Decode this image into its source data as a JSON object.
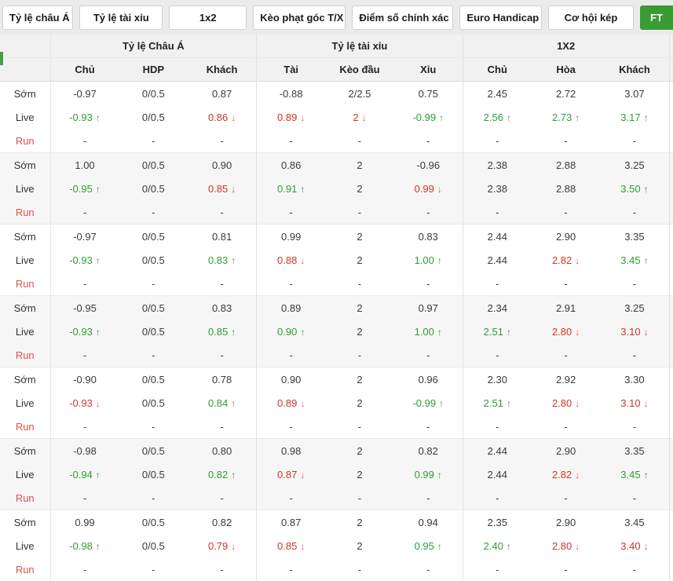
{
  "tab_bar": {
    "tabs": [
      {
        "label": "Tỷ lệ châu Á"
      },
      {
        "label": "Tỷ lệ tài xỉu"
      },
      {
        "label": "1x2"
      },
      {
        "label": "Kèo phạt góc T/X"
      },
      {
        "label": "Điểm số chính xác"
      },
      {
        "label": "Euro Handicap"
      },
      {
        "label": "Cơ hội kép"
      }
    ],
    "ft_label": "FT"
  },
  "colors": {
    "green": "#2f9d36",
    "red": "#d0342c",
    "arrow_down": "#e0602f",
    "ft_button_green": "#3a9b35",
    "run_label_red": "#d9534f"
  },
  "table": {
    "groups": [
      "Tỷ lệ Châu Á",
      "Tỷ lệ tài xỉu",
      "1X2"
    ],
    "columns": [
      "Chủ",
      "HDP",
      "Khách",
      "Tài",
      "Kèo đầu",
      "Xỉu",
      "Chủ",
      "Hòa",
      "Khách"
    ],
    "rows": [
      {
        "label": "Sớm",
        "type": "early",
        "cells": [
          {
            "v": "-0.97",
            "c": "k"
          },
          {
            "v": "0/0.5",
            "c": "k"
          },
          {
            "v": "0.87",
            "c": "k"
          },
          {
            "v": "-0.88",
            "c": "k"
          },
          {
            "v": "2/2.5",
            "c": "k"
          },
          {
            "v": "0.75",
            "c": "k"
          },
          {
            "v": "2.45",
            "c": "k"
          },
          {
            "v": "2.72",
            "c": "k"
          },
          {
            "v": "3.07",
            "c": "k"
          }
        ]
      },
      {
        "label": "Live",
        "type": "live",
        "cells": [
          {
            "v": "-0.93",
            "c": "g",
            "a": "u"
          },
          {
            "v": "0/0.5",
            "c": "k"
          },
          {
            "v": "0.86",
            "c": "r",
            "a": "d"
          },
          {
            "v": "0.89",
            "c": "r",
            "a": "d"
          },
          {
            "v": "2",
            "c": "r",
            "a": "d"
          },
          {
            "v": "-0.99",
            "c": "g",
            "a": "u"
          },
          {
            "v": "2.56",
            "c": "g",
            "a": "u"
          },
          {
            "v": "2.73",
            "c": "g",
            "a": "u"
          },
          {
            "v": "3.17",
            "c": "g",
            "a": "u"
          }
        ]
      },
      {
        "label": "Run",
        "type": "run",
        "cells": [
          {
            "v": "-",
            "c": "k"
          },
          {
            "v": "-",
            "c": "k"
          },
          {
            "v": "-",
            "c": "k"
          },
          {
            "v": "-",
            "c": "k"
          },
          {
            "v": "-",
            "c": "k"
          },
          {
            "v": "-",
            "c": "k"
          },
          {
            "v": "-",
            "c": "k"
          },
          {
            "v": "-",
            "c": "k"
          },
          {
            "v": "-",
            "c": "k"
          }
        ]
      },
      {
        "label": "Sớm",
        "type": "early",
        "cells": [
          {
            "v": "1.00",
            "c": "k"
          },
          {
            "v": "0/0.5",
            "c": "k"
          },
          {
            "v": "0.90",
            "c": "k"
          },
          {
            "v": "0.86",
            "c": "k"
          },
          {
            "v": "2",
            "c": "k"
          },
          {
            "v": "-0.96",
            "c": "k"
          },
          {
            "v": "2.38",
            "c": "k"
          },
          {
            "v": "2.88",
            "c": "k"
          },
          {
            "v": "3.25",
            "c": "k"
          }
        ]
      },
      {
        "label": "Live",
        "type": "live",
        "cells": [
          {
            "v": "-0.95",
            "c": "g",
            "a": "u"
          },
          {
            "v": "0/0.5",
            "c": "k"
          },
          {
            "v": "0.85",
            "c": "r",
            "a": "d"
          },
          {
            "v": "0.91",
            "c": "g",
            "a": "u"
          },
          {
            "v": "2",
            "c": "k"
          },
          {
            "v": "0.99",
            "c": "r",
            "a": "d"
          },
          {
            "v": "2.38",
            "c": "k"
          },
          {
            "v": "2.88",
            "c": "k"
          },
          {
            "v": "3.50",
            "c": "g",
            "a": "u"
          }
        ]
      },
      {
        "label": "Run",
        "type": "run",
        "cells": [
          {
            "v": "-",
            "c": "k"
          },
          {
            "v": "-",
            "c": "k"
          },
          {
            "v": "-",
            "c": "k"
          },
          {
            "v": "-",
            "c": "k"
          },
          {
            "v": "-",
            "c": "k"
          },
          {
            "v": "-",
            "c": "k"
          },
          {
            "v": "-",
            "c": "k"
          },
          {
            "v": "-",
            "c": "k"
          },
          {
            "v": "-",
            "c": "k"
          }
        ]
      },
      {
        "label": "Sớm",
        "type": "early",
        "cells": [
          {
            "v": "-0.97",
            "c": "k"
          },
          {
            "v": "0/0.5",
            "c": "k"
          },
          {
            "v": "0.81",
            "c": "k"
          },
          {
            "v": "0.99",
            "c": "k"
          },
          {
            "v": "2",
            "c": "k"
          },
          {
            "v": "0.83",
            "c": "k"
          },
          {
            "v": "2.44",
            "c": "k"
          },
          {
            "v": "2.90",
            "c": "k"
          },
          {
            "v": "3.35",
            "c": "k"
          }
        ]
      },
      {
        "label": "Live",
        "type": "live",
        "cells": [
          {
            "v": "-0.93",
            "c": "g",
            "a": "u"
          },
          {
            "v": "0/0.5",
            "c": "k"
          },
          {
            "v": "0.83",
            "c": "g",
            "a": "u"
          },
          {
            "v": "0.88",
            "c": "r",
            "a": "d"
          },
          {
            "v": "2",
            "c": "k"
          },
          {
            "v": "1.00",
            "c": "g",
            "a": "u"
          },
          {
            "v": "2.44",
            "c": "k"
          },
          {
            "v": "2.82",
            "c": "r",
            "a": "d"
          },
          {
            "v": "3.45",
            "c": "g",
            "a": "u"
          }
        ]
      },
      {
        "label": "Run",
        "type": "run",
        "cells": [
          {
            "v": "-",
            "c": "k"
          },
          {
            "v": "-",
            "c": "k"
          },
          {
            "v": "-",
            "c": "k"
          },
          {
            "v": "-",
            "c": "k"
          },
          {
            "v": "-",
            "c": "k"
          },
          {
            "v": "-",
            "c": "k"
          },
          {
            "v": "-",
            "c": "k"
          },
          {
            "v": "-",
            "c": "k"
          },
          {
            "v": "-",
            "c": "k"
          }
        ]
      },
      {
        "label": "Sớm",
        "type": "early",
        "cells": [
          {
            "v": "-0.95",
            "c": "k"
          },
          {
            "v": "0/0.5",
            "c": "k"
          },
          {
            "v": "0.83",
            "c": "k"
          },
          {
            "v": "0.89",
            "c": "k"
          },
          {
            "v": "2",
            "c": "k"
          },
          {
            "v": "0.97",
            "c": "k"
          },
          {
            "v": "2.34",
            "c": "k"
          },
          {
            "v": "2.91",
            "c": "k"
          },
          {
            "v": "3.25",
            "c": "k"
          }
        ]
      },
      {
        "label": "Live",
        "type": "live",
        "cells": [
          {
            "v": "-0.93",
            "c": "g",
            "a": "u"
          },
          {
            "v": "0/0.5",
            "c": "k"
          },
          {
            "v": "0.85",
            "c": "g",
            "a": "u"
          },
          {
            "v": "0.90",
            "c": "g",
            "a": "u"
          },
          {
            "v": "2",
            "c": "k"
          },
          {
            "v": "1.00",
            "c": "g",
            "a": "u"
          },
          {
            "v": "2.51",
            "c": "g",
            "a": "u"
          },
          {
            "v": "2.80",
            "c": "r",
            "a": "d"
          },
          {
            "v": "3.10",
            "c": "r",
            "a": "d"
          }
        ]
      },
      {
        "label": "Run",
        "type": "run",
        "cells": [
          {
            "v": "-",
            "c": "k"
          },
          {
            "v": "-",
            "c": "k"
          },
          {
            "v": "-",
            "c": "k"
          },
          {
            "v": "-",
            "c": "k"
          },
          {
            "v": "-",
            "c": "k"
          },
          {
            "v": "-",
            "c": "k"
          },
          {
            "v": "-",
            "c": "k"
          },
          {
            "v": "-",
            "c": "k"
          },
          {
            "v": "-",
            "c": "k"
          }
        ]
      },
      {
        "label": "Sớm",
        "type": "early",
        "cells": [
          {
            "v": "-0.90",
            "c": "k"
          },
          {
            "v": "0/0.5",
            "c": "k"
          },
          {
            "v": "0.78",
            "c": "k"
          },
          {
            "v": "0.90",
            "c": "k"
          },
          {
            "v": "2",
            "c": "k"
          },
          {
            "v": "0.96",
            "c": "k"
          },
          {
            "v": "2.30",
            "c": "k"
          },
          {
            "v": "2.92",
            "c": "k"
          },
          {
            "v": "3.30",
            "c": "k"
          }
        ]
      },
      {
        "label": "Live",
        "type": "live",
        "cells": [
          {
            "v": "-0.93",
            "c": "r",
            "a": "d"
          },
          {
            "v": "0/0.5",
            "c": "k"
          },
          {
            "v": "0.84",
            "c": "g",
            "a": "u"
          },
          {
            "v": "0.89",
            "c": "r",
            "a": "d"
          },
          {
            "v": "2",
            "c": "k"
          },
          {
            "v": "-0.99",
            "c": "g",
            "a": "u"
          },
          {
            "v": "2.51",
            "c": "g",
            "a": "u"
          },
          {
            "v": "2.80",
            "c": "r",
            "a": "d"
          },
          {
            "v": "3.10",
            "c": "r",
            "a": "d"
          }
        ]
      },
      {
        "label": "Run",
        "type": "run",
        "cells": [
          {
            "v": "-",
            "c": "k"
          },
          {
            "v": "-",
            "c": "k"
          },
          {
            "v": "-",
            "c": "k"
          },
          {
            "v": "-",
            "c": "k"
          },
          {
            "v": "-",
            "c": "k"
          },
          {
            "v": "-",
            "c": "k"
          },
          {
            "v": "-",
            "c": "k"
          },
          {
            "v": "-",
            "c": "k"
          },
          {
            "v": "-",
            "c": "k"
          }
        ]
      },
      {
        "label": "Sớm",
        "type": "early",
        "cells": [
          {
            "v": "-0.98",
            "c": "k"
          },
          {
            "v": "0/0.5",
            "c": "k"
          },
          {
            "v": "0.80",
            "c": "k"
          },
          {
            "v": "0.98",
            "c": "k"
          },
          {
            "v": "2",
            "c": "k"
          },
          {
            "v": "0.82",
            "c": "k"
          },
          {
            "v": "2.44",
            "c": "k"
          },
          {
            "v": "2.90",
            "c": "k"
          },
          {
            "v": "3.35",
            "c": "k"
          }
        ]
      },
      {
        "label": "Live",
        "type": "live",
        "cells": [
          {
            "v": "-0.94",
            "c": "g",
            "a": "u"
          },
          {
            "v": "0/0.5",
            "c": "k"
          },
          {
            "v": "0.82",
            "c": "g",
            "a": "u"
          },
          {
            "v": "0.87",
            "c": "r",
            "a": "d"
          },
          {
            "v": "2",
            "c": "k"
          },
          {
            "v": "0.99",
            "c": "g",
            "a": "u"
          },
          {
            "v": "2.44",
            "c": "k"
          },
          {
            "v": "2.82",
            "c": "r",
            "a": "d"
          },
          {
            "v": "3.45",
            "c": "g",
            "a": "u"
          }
        ]
      },
      {
        "label": "Run",
        "type": "run",
        "cells": [
          {
            "v": "-",
            "c": "k"
          },
          {
            "v": "-",
            "c": "k"
          },
          {
            "v": "-",
            "c": "k"
          },
          {
            "v": "-",
            "c": "k"
          },
          {
            "v": "-",
            "c": "k"
          },
          {
            "v": "-",
            "c": "k"
          },
          {
            "v": "-",
            "c": "k"
          },
          {
            "v": "-",
            "c": "k"
          },
          {
            "v": "-",
            "c": "k"
          }
        ]
      },
      {
        "label": "Sớm",
        "type": "early",
        "cells": [
          {
            "v": "0.99",
            "c": "k"
          },
          {
            "v": "0/0.5",
            "c": "k"
          },
          {
            "v": "0.82",
            "c": "k"
          },
          {
            "v": "0.87",
            "c": "k"
          },
          {
            "v": "2",
            "c": "k"
          },
          {
            "v": "0.94",
            "c": "k"
          },
          {
            "v": "2.35",
            "c": "k"
          },
          {
            "v": "2.90",
            "c": "k"
          },
          {
            "v": "3.45",
            "c": "k"
          }
        ]
      },
      {
        "label": "Live",
        "type": "live",
        "cells": [
          {
            "v": "-0.98",
            "c": "g",
            "a": "u"
          },
          {
            "v": "0/0.5",
            "c": "k"
          },
          {
            "v": "0.79",
            "c": "r",
            "a": "d"
          },
          {
            "v": "0.85",
            "c": "r",
            "a": "d"
          },
          {
            "v": "2",
            "c": "k"
          },
          {
            "v": "0.95",
            "c": "g",
            "a": "u"
          },
          {
            "v": "2.40",
            "c": "g",
            "a": "u"
          },
          {
            "v": "2.80",
            "c": "r",
            "a": "d"
          },
          {
            "v": "3.40",
            "c": "r",
            "a": "d"
          }
        ]
      },
      {
        "label": "Run",
        "type": "run",
        "cells": [
          {
            "v": "-",
            "c": "k"
          },
          {
            "v": "-",
            "c": "k"
          },
          {
            "v": "-",
            "c": "k"
          },
          {
            "v": "-",
            "c": "k"
          },
          {
            "v": "-",
            "c": "k"
          },
          {
            "v": "-",
            "c": "k"
          },
          {
            "v": "-",
            "c": "k"
          },
          {
            "v": "-",
            "c": "k"
          },
          {
            "v": "-",
            "c": "k"
          }
        ]
      }
    ]
  }
}
